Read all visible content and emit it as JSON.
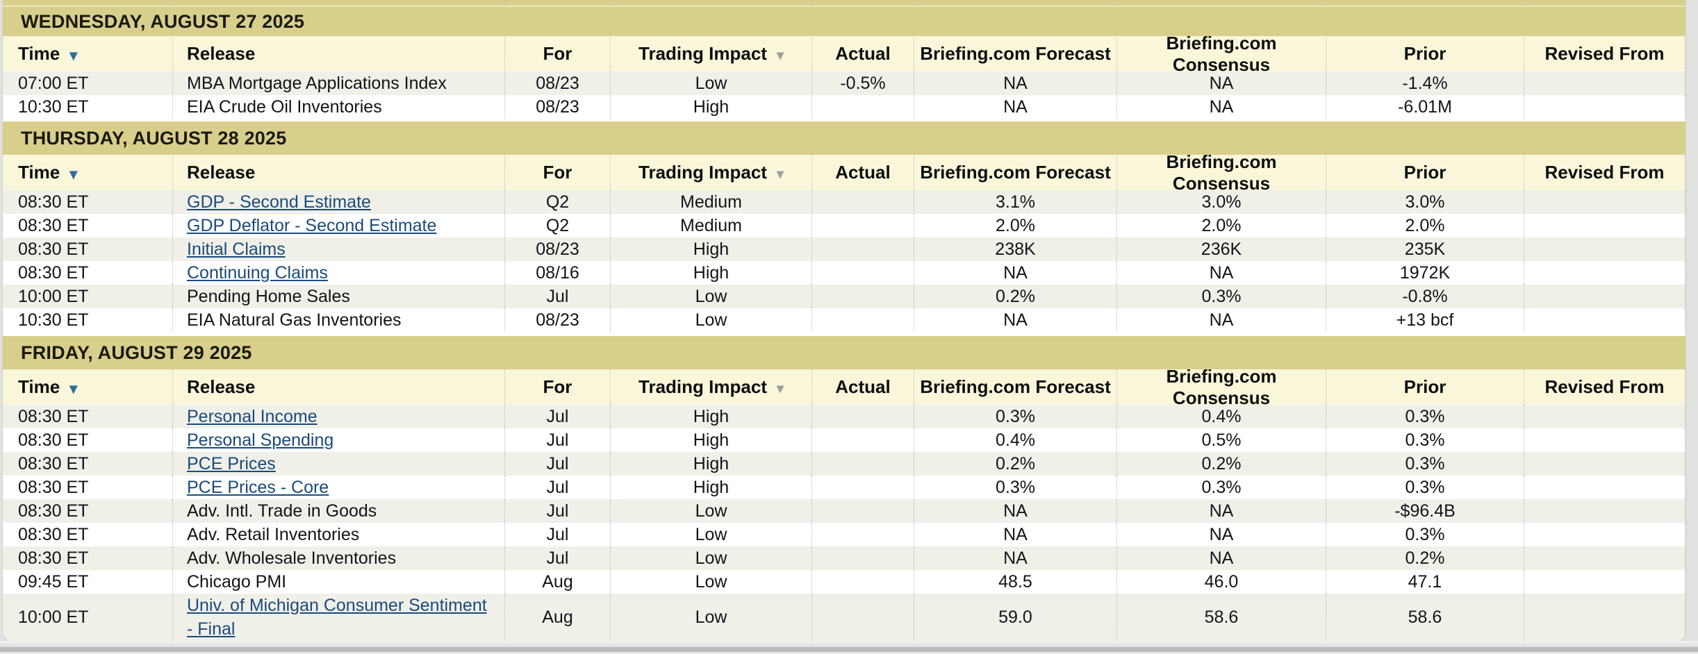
{
  "icons": {
    "sort_arrow": "▾"
  },
  "colors": {
    "banner_bg": "#d8cf8c",
    "header_bg": "#faf6da",
    "row_alt_bg": "#f0f0e9",
    "row_bg": "#ffffff",
    "link": "#1a4a7d",
    "time_sort_arrow": "#2d6e9d",
    "impact_sort_arrow": "#9f9f9f",
    "text": "#141414"
  },
  "table": {
    "columns": [
      {
        "key": "time",
        "label": "Time",
        "sortable": true
      },
      {
        "key": "release",
        "label": "Release",
        "sortable": false
      },
      {
        "key": "for",
        "label": "For",
        "sortable": false
      },
      {
        "key": "impact",
        "label": "Trading Impact",
        "sortable": true
      },
      {
        "key": "actual",
        "label": "Actual",
        "sortable": false
      },
      {
        "key": "forecast",
        "label": "Briefing.com Forecast",
        "sortable": false
      },
      {
        "key": "consensus",
        "label": "Briefing.com Consensus",
        "sortable": false
      },
      {
        "key": "prior",
        "label": "Prior",
        "sortable": false
      },
      {
        "key": "revised",
        "label": "Revised From",
        "sortable": false
      }
    ],
    "sections": [
      {
        "date": "WEDNESDAY, AUGUST 27 2025",
        "rows": [
          {
            "time": "07:00 ET",
            "release": "MBA Mortgage Applications Index",
            "link": false,
            "for": "08/23",
            "impact": "Low",
            "actual": "-0.5%",
            "forecast": "NA",
            "consensus": "NA",
            "prior": "-1.4%",
            "revised": ""
          },
          {
            "time": "10:30 ET",
            "release": "EIA Crude Oil Inventories",
            "link": false,
            "for": "08/23",
            "impact": "High",
            "actual": "",
            "forecast": "NA",
            "consensus": "NA",
            "prior": "-6.01M",
            "revised": ""
          }
        ]
      },
      {
        "date": "THURSDAY, AUGUST 28 2025",
        "rows": [
          {
            "time": "08:30 ET",
            "release": "GDP - Second Estimate",
            "link": true,
            "for": "Q2",
            "impact": "Medium",
            "actual": "",
            "forecast": "3.1%",
            "consensus": "3.0%",
            "prior": "3.0%",
            "revised": ""
          },
          {
            "time": "08:30 ET",
            "release": "GDP Deflator - Second Estimate",
            "link": true,
            "for": "Q2",
            "impact": "Medium",
            "actual": "",
            "forecast": "2.0%",
            "consensus": "2.0%",
            "prior": "2.0%",
            "revised": ""
          },
          {
            "time": "08:30 ET",
            "release": "Initial Claims",
            "link": true,
            "for": "08/23",
            "impact": "High",
            "actual": "",
            "forecast": "238K",
            "consensus": "236K",
            "prior": "235K",
            "revised": ""
          },
          {
            "time": "08:30 ET",
            "release": "Continuing Claims",
            "link": true,
            "for": "08/16",
            "impact": "High",
            "actual": "",
            "forecast": "NA",
            "consensus": "NA",
            "prior": "1972K",
            "revised": ""
          },
          {
            "time": "10:00 ET",
            "release": "Pending Home Sales",
            "link": false,
            "for": "Jul",
            "impact": "Low",
            "actual": "",
            "forecast": "0.2%",
            "consensus": "0.3%",
            "prior": "-0.8%",
            "revised": ""
          },
          {
            "time": "10:30 ET",
            "release": "EIA Natural Gas Inventories",
            "link": false,
            "for": "08/23",
            "impact": "Low",
            "actual": "",
            "forecast": "NA",
            "consensus": "NA",
            "prior": "+13 bcf",
            "revised": ""
          }
        ]
      },
      {
        "date": "FRIDAY, AUGUST 29 2025",
        "rows": [
          {
            "time": "08:30 ET",
            "release": "Personal Income",
            "link": true,
            "for": "Jul",
            "impact": "High",
            "actual": "",
            "forecast": "0.3%",
            "consensus": "0.4%",
            "prior": "0.3%",
            "revised": ""
          },
          {
            "time": "08:30 ET",
            "release": "Personal Spending",
            "link": true,
            "for": "Jul",
            "impact": "High",
            "actual": "",
            "forecast": "0.4%",
            "consensus": "0.5%",
            "prior": "0.3%",
            "revised": ""
          },
          {
            "time": "08:30 ET",
            "release": "PCE Prices",
            "link": true,
            "for": "Jul",
            "impact": "High",
            "actual": "",
            "forecast": "0.2%",
            "consensus": "0.2%",
            "prior": "0.3%",
            "revised": ""
          },
          {
            "time": "08:30 ET",
            "release": "PCE Prices - Core",
            "link": true,
            "for": "Jul",
            "impact": "High",
            "actual": "",
            "forecast": "0.3%",
            "consensus": "0.3%",
            "prior": "0.3%",
            "revised": ""
          },
          {
            "time": "08:30 ET",
            "release": "Adv. Intl. Trade in Goods",
            "link": false,
            "for": "Jul",
            "impact": "Low",
            "actual": "",
            "forecast": "NA",
            "consensus": "NA",
            "prior": "-$96.4B",
            "revised": ""
          },
          {
            "time": "08:30 ET",
            "release": "Adv. Retail Inventories",
            "link": false,
            "for": "Jul",
            "impact": "Low",
            "actual": "",
            "forecast": "NA",
            "consensus": "NA",
            "prior": "0.3%",
            "revised": ""
          },
          {
            "time": "08:30 ET",
            "release": "Adv. Wholesale Inventories",
            "link": false,
            "for": "Jul",
            "impact": "Low",
            "actual": "",
            "forecast": "NA",
            "consensus": "NA",
            "prior": "0.2%",
            "revised": ""
          },
          {
            "time": "09:45 ET",
            "release": "Chicago PMI",
            "link": false,
            "for": "Aug",
            "impact": "Low",
            "actual": "",
            "forecast": "48.5",
            "consensus": "46.0",
            "prior": "47.1",
            "revised": ""
          },
          {
            "time": "10:00 ET",
            "release": "Univ. of Michigan Consumer Sentiment - Final",
            "link": true,
            "for": "Aug",
            "impact": "Low",
            "actual": "",
            "forecast": "59.0",
            "consensus": "58.6",
            "prior": "58.6",
            "revised": ""
          }
        ]
      }
    ]
  }
}
